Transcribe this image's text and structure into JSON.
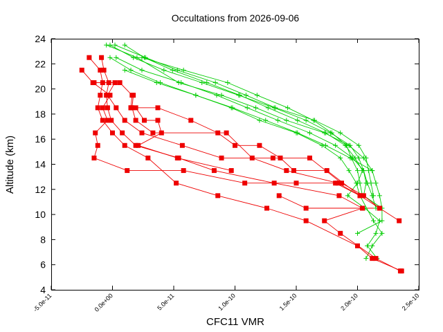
{
  "chart_data": {
    "type": "line",
    "title": "Occultations from 2026-09-06",
    "xlabel": "CFC11 VMR",
    "ylabel": "Altitude (km)",
    "xlim": [
      -5e-11,
      2.5e-10
    ],
    "ylim": [
      4,
      24
    ],
    "x_ticks": [
      -5e-11,
      0,
      5e-11,
      1e-10,
      1.5e-10,
      2e-10,
      2.5e-10
    ],
    "x_tick_labels": [
      "-5.0e-11",
      "0.0e+00",
      "5.0e-11",
      "1.0e-10",
      "1.5e-10",
      "2.0e-10",
      "2.5e-10"
    ],
    "y_ticks": [
      4,
      6,
      8,
      10,
      12,
      14,
      16,
      18,
      20,
      22,
      24
    ],
    "y_tick_labels": [
      "4",
      "6",
      "8",
      "10",
      "12",
      "14",
      "16",
      "18",
      "20",
      "22",
      "24"
    ],
    "grid": false,
    "legend": "none",
    "colors": {
      "red": "#ee0000",
      "green": "#00cc00",
      "axis": "#000000"
    },
    "series": [
      {
        "color": "red",
        "marker": "square",
        "points": [
          [
            -1.9e-11,
            22.5
          ],
          [
            -1e-11,
            21.5
          ],
          [
            -8e-12,
            20.5
          ],
          [
            -1e-11,
            19.5
          ],
          [
            -1.2e-11,
            18.5
          ],
          [
            -8e-12,
            17.5
          ],
          [
            0,
            16.5
          ],
          [
            1e-11,
            15.5
          ],
          [
            2.9e-11,
            14.5
          ],
          [
            5.2e-11,
            12.5
          ],
          [
            8.6e-11,
            11.5
          ],
          [
            1.26e-10,
            10.5
          ],
          [
            1.58e-10,
            9.5
          ],
          [
            2e-10,
            7.5
          ],
          [
            2.12e-10,
            6.5
          ],
          [
            2.36e-10,
            5.5
          ]
        ]
      },
      {
        "color": "red",
        "marker": "square",
        "points": [
          [
            -9e-12,
            22.5
          ],
          [
            -7e-12,
            21.5
          ],
          [
            -3e-12,
            20.5
          ],
          [
            -5e-12,
            19.5
          ],
          [
            -4e-12,
            18.5
          ],
          [
            -1e-12,
            17.5
          ],
          [
            8e-12,
            16.5
          ],
          [
            1.9e-11,
            15.5
          ],
          [
            5.4e-11,
            14.5
          ],
          [
            8.3e-11,
            13.5
          ],
          [
            1.32e-10,
            12.5
          ],
          [
            1.85e-10,
            11.5
          ],
          [
            2.04e-10,
            10.5
          ],
          [
            1.73e-10,
            9.5
          ],
          [
            1.86e-10,
            8.5
          ],
          [
            2.15e-10,
            6.5
          ],
          [
            2.35e-10,
            5.5
          ]
        ]
      },
      {
        "color": "red",
        "marker": "square",
        "points": [
          [
            -2.5e-11,
            21.5
          ],
          [
            -1.6e-11,
            20.5
          ],
          [
            -2e-12,
            19.5
          ],
          [
            -8e-12,
            18.5
          ],
          [
            -4e-12,
            17.5
          ],
          [
            -1.4e-11,
            16.5
          ],
          [
            -1.2e-11,
            15.5
          ],
          [
            -1.5e-11,
            14.5
          ],
          [
            1.2e-11,
            13.5
          ],
          [
            5.8e-11,
            13.5
          ],
          [
            1.08e-10,
            12.5
          ],
          [
            1.5e-10,
            12.5
          ],
          [
            1.82e-10,
            12.5
          ],
          [
            2.02e-10,
            11.5
          ],
          [
            2.18e-10,
            10.5
          ],
          [
            2.34e-10,
            9.5
          ]
        ]
      },
      {
        "color": "red",
        "marker": "square",
        "points": [
          [
            -1.5e-11,
            20.5
          ],
          [
            2e-12,
            20.5
          ],
          [
            -4e-12,
            19.5
          ],
          [
            3e-12,
            18.5
          ],
          [
            1e-11,
            17.5
          ],
          [
            2.4e-11,
            16.5
          ],
          [
            5.7e-11,
            15.5
          ],
          [
            8.9e-11,
            14.5
          ],
          [
            1.31e-10,
            14.5
          ],
          [
            1.61e-10,
            14.5
          ],
          [
            1.87e-10,
            12.5
          ],
          [
            2.05e-10,
            11.5
          ],
          [
            2.18e-10,
            10.5
          ],
          [
            1.58e-10,
            10.5
          ],
          [
            1.36e-10,
            11.5
          ]
        ]
      },
      {
        "color": "red",
        "marker": "square",
        "points": [
          [
            6e-12,
            20.5
          ],
          [
            1.6e-11,
            19.5
          ],
          [
            1.5e-11,
            18.5
          ],
          [
            3.7e-11,
            18.5
          ],
          [
            6.4e-11,
            17.5
          ],
          [
            8.6e-11,
            16.5
          ],
          [
            1e-10,
            15.5
          ],
          [
            1.2e-10,
            15.5
          ],
          [
            1.37e-10,
            14.5
          ],
          [
            1.48e-10,
            13.5
          ],
          [
            1.75e-10,
            13.5
          ],
          [
            2.02e-10,
            11.5
          ]
        ]
      },
      {
        "color": "red",
        "marker": "square",
        "points": [
          [
            1.7e-11,
            19.5
          ],
          [
            1.6e-11,
            18.5
          ],
          [
            1.9e-11,
            17.5
          ],
          [
            3.3e-11,
            16.5
          ],
          [
            9.3e-11,
            16.5
          ],
          [
            1.14e-10,
            14.5
          ],
          [
            1.42e-10,
            13.5
          ],
          [
            1.84e-10,
            12.5
          ],
          [
            2.02e-10,
            11.5
          ]
        ]
      },
      {
        "color": "red",
        "marker": "square",
        "points": [
          [
            1.5e-11,
            18.5
          ],
          [
            1.9e-11,
            18.5
          ],
          [
            2.6e-11,
            17.5
          ],
          [
            3.7e-11,
            17.5
          ],
          [
            4e-11,
            16.5
          ],
          [
            2.1e-11,
            15.5
          ],
          [
            5.3e-11,
            14.5
          ],
          [
            9.7e-11,
            13.5
          ]
        ]
      },
      {
        "color": "green",
        "marker": "plus",
        "points": [
          [
            -5e-12,
            23.5
          ],
          [
            2e-11,
            22.5
          ],
          [
            5.4e-11,
            20.5
          ],
          [
            8.9e-11,
            19.5
          ],
          [
            1.17e-10,
            18.5
          ],
          [
            1.42e-10,
            17.5
          ],
          [
            1.73e-10,
            16.5
          ],
          [
            1.93e-10,
            15.5
          ],
          [
            2.05e-10,
            14.5
          ],
          [
            2.12e-10,
            13.5
          ],
          [
            2.15e-10,
            12.5
          ],
          [
            2.18e-10,
            11.5
          ],
          [
            2.2e-10,
            10.5
          ]
        ]
      },
      {
        "color": "green",
        "marker": "plus",
        "points": [
          [
            -2e-12,
            23.5
          ],
          [
            1.7e-11,
            22.5
          ],
          [
            4.2e-11,
            21.5
          ],
          [
            7.3e-11,
            20.5
          ],
          [
            1.03e-10,
            19.5
          ],
          [
            1.32e-10,
            18.5
          ],
          [
            1.58e-10,
            17.5
          ],
          [
            1.78e-10,
            16.5
          ],
          [
            1.94e-10,
            15.5
          ],
          [
            2.01e-10,
            14.5
          ],
          [
            2.05e-10,
            13.5
          ],
          [
            2.08e-10,
            12.5
          ],
          [
            2.12e-10,
            11.5
          ],
          [
            2.15e-10,
            10.5
          ]
        ]
      },
      {
        "color": "green",
        "marker": "plus",
        "points": [
          [
            2e-12,
            23.5
          ],
          [
            2.7e-11,
            22.5
          ],
          [
            5.3e-11,
            21.5
          ],
          [
            8.4e-11,
            20.5
          ],
          [
            1.09e-10,
            19.5
          ],
          [
            1.33e-10,
            18.5
          ],
          [
            1.65e-10,
            17.5
          ],
          [
            1.86e-10,
            16.5
          ],
          [
            2.01e-10,
            15.5
          ],
          [
            2.07e-10,
            14.5
          ],
          [
            2.09e-10,
            13.5
          ],
          [
            2.11e-10,
            12.5
          ],
          [
            2.13e-10,
            11.5
          ]
        ]
      },
      {
        "color": "green",
        "marker": "plus",
        "points": [
          [
            1e-11,
            23.5
          ],
          [
            2.6e-11,
            22.5
          ],
          [
            4.9e-11,
            21.5
          ],
          [
            7.7e-11,
            20.5
          ],
          [
            1.04e-10,
            19.5
          ],
          [
            1.27e-10,
            18.5
          ],
          [
            1.51e-10,
            17.5
          ],
          [
            1.74e-10,
            16.5
          ],
          [
            1.9e-10,
            15.5
          ],
          [
            1.98e-10,
            14.5
          ],
          [
            2.04e-10,
            13.5
          ],
          [
            2e-10,
            12.5
          ],
          [
            1.92e-10,
            11.5
          ],
          [
            2.06e-10,
            10.5
          ],
          [
            2.18e-10,
            9.5
          ],
          [
            2.15e-10,
            8.5
          ],
          [
            2.08e-10,
            7.5
          ],
          [
            2.16e-10,
            6.5
          ]
        ]
      },
      {
        "color": "green",
        "marker": "plus",
        "points": [
          [
            -2e-12,
            22.5
          ],
          [
            1.5e-11,
            21.5
          ],
          [
            3.9e-11,
            20.5
          ],
          [
            6.8e-11,
            19.5
          ],
          [
            9.7e-11,
            18.5
          ],
          [
            1.2e-10,
            17.5
          ],
          [
            1.5e-10,
            16.5
          ],
          [
            1.71e-10,
            15.5
          ],
          [
            1.86e-10,
            14.5
          ],
          [
            1.93e-10,
            13.5
          ],
          [
            1.99e-10,
            12.5
          ],
          [
            2.02e-10,
            11.5
          ],
          [
            2.13e-10,
            9.5
          ],
          [
            2.2e-10,
            8.5
          ],
          [
            2.12e-10,
            7.5
          ],
          [
            2.07e-10,
            6.5
          ]
        ]
      },
      {
        "color": "green",
        "marker": "plus",
        "points": [
          [
            3e-12,
            22.5
          ],
          [
            2.4e-11,
            21.5
          ],
          [
            5.6e-11,
            20.5
          ],
          [
            8.5e-11,
            19.5
          ],
          [
            1.1e-10,
            18.5
          ],
          [
            1.35e-10,
            17.5
          ],
          [
            1.61e-10,
            16.5
          ],
          [
            1.82e-10,
            15.5
          ],
          [
            1.96e-10,
            14.5
          ],
          [
            2.05e-10,
            13.5
          ],
          [
            2.07e-10,
            12.5
          ],
          [
            2.05e-10,
            11.5
          ],
          [
            2.2e-10,
            10.5
          ],
          [
            2.2e-10,
            9.5
          ],
          [
            2e-10,
            8.5
          ]
        ]
      },
      {
        "color": "green",
        "marker": "plus",
        "points": [
          [
            1e-11,
            21.5
          ],
          [
            3.6e-11,
            20.5
          ],
          [
            6.8e-11,
            19.5
          ],
          [
            9.8e-11,
            18.5
          ],
          [
            1.25e-10,
            17.5
          ],
          [
            1.51e-10,
            16.5
          ],
          [
            1.74e-10,
            15.5
          ],
          [
            1.94e-10,
            14.5
          ],
          [
            2.12e-10,
            13.5
          ]
        ]
      },
      {
        "color": "green",
        "marker": "plus",
        "points": [
          [
            2.4e-11,
            22.5
          ],
          [
            5.8e-11,
            21.5
          ],
          [
            9.4e-11,
            20.5
          ],
          [
            1.18e-10,
            19.5
          ],
          [
            1.43e-10,
            18.5
          ],
          [
            1.64e-10,
            17.5
          ],
          [
            1.79e-10,
            16.5
          ],
          [
            1.91e-10,
            15.5
          ],
          [
            1.95e-10,
            14.5
          ],
          [
            2e-10,
            13.5
          ],
          [
            2.02e-10,
            12.5
          ],
          [
            2.04e-10,
            11.5
          ]
        ]
      }
    ]
  }
}
